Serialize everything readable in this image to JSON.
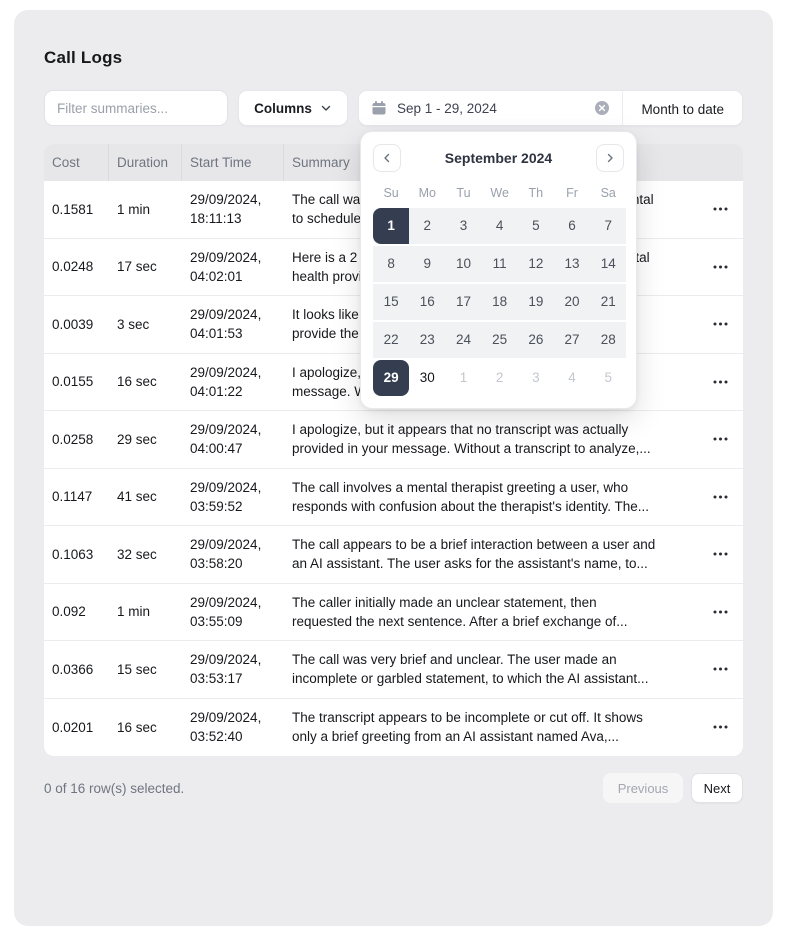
{
  "page_title": "Call Logs",
  "toolbar": {
    "filter_placeholder": "Filter summaries...",
    "columns_label": "Columns",
    "date_range_value": "Sep 1 - 29, 2024",
    "month_to_date_label": "Month to date"
  },
  "calendar": {
    "title": "September 2024",
    "weekdays": [
      "Su",
      "Mo",
      "Tu",
      "We",
      "Th",
      "Fr",
      "Sa"
    ],
    "weeks": [
      [
        {
          "d": "1",
          "state": "selected rstart"
        },
        {
          "d": "2",
          "state": "range"
        },
        {
          "d": "3",
          "state": "range"
        },
        {
          "d": "4",
          "state": "range"
        },
        {
          "d": "5",
          "state": "range"
        },
        {
          "d": "6",
          "state": "range"
        },
        {
          "d": "7",
          "state": "range"
        }
      ],
      [
        {
          "d": "8",
          "state": "range"
        },
        {
          "d": "9",
          "state": "range"
        },
        {
          "d": "10",
          "state": "range"
        },
        {
          "d": "11",
          "state": "range"
        },
        {
          "d": "12",
          "state": "range"
        },
        {
          "d": "13",
          "state": "range"
        },
        {
          "d": "14",
          "state": "range"
        }
      ],
      [
        {
          "d": "15",
          "state": "range"
        },
        {
          "d": "16",
          "state": "range"
        },
        {
          "d": "17",
          "state": "range"
        },
        {
          "d": "18",
          "state": "range"
        },
        {
          "d": "19",
          "state": "range"
        },
        {
          "d": "20",
          "state": "range"
        },
        {
          "d": "21",
          "state": "range"
        }
      ],
      [
        {
          "d": "22",
          "state": "range"
        },
        {
          "d": "23",
          "state": "range"
        },
        {
          "d": "24",
          "state": "range"
        },
        {
          "d": "25",
          "state": "range"
        },
        {
          "d": "26",
          "state": "range"
        },
        {
          "d": "27",
          "state": "range"
        },
        {
          "d": "28",
          "state": "range"
        }
      ],
      [
        {
          "d": "29",
          "state": "selected rend"
        },
        {
          "d": "30",
          "state": "normal"
        },
        {
          "d": "1",
          "state": "outside"
        },
        {
          "d": "2",
          "state": "outside"
        },
        {
          "d": "3",
          "state": "outside"
        },
        {
          "d": "4",
          "state": "outside"
        },
        {
          "d": "5",
          "state": "outside"
        }
      ]
    ]
  },
  "table": {
    "headers": [
      "Cost",
      "Duration",
      "Start Time",
      "Summary"
    ],
    "rows": [
      {
        "cost": "0.1581",
        "duration": "1 min",
        "date": "29/09/2024,",
        "time": "18:11:13",
        "summary_line1": "The call was an appointment confirmation from Bright Dental",
        "summary_line2": "to schedule a dental appointment. The caller..."
      },
      {
        "cost": "0.0248",
        "duration": "17 sec",
        "date": "29/09/2024,",
        "time": "04:02:01",
        "summary_line1": "Here is a 2 sentence summary: The caller reached a mental",
        "summary_line2": "health provider's office and were assisted by Monika at..."
      },
      {
        "cost": "0.0039",
        "duration": "3 sec",
        "date": "29/09/2024,",
        "time": "04:01:53",
        "summary_line1": "It looks like no transcript was actually included. Please",
        "summary_line2": "provide the transcript so I can summarize it..."
      },
      {
        "cost": "0.0155",
        "duration": "16 sec",
        "date": "29/09/2024,",
        "time": "04:01:22",
        "summary_line1": "I apologize, but no transcript was provided in your",
        "summary_line2": "message. Without an actual transcript, I'm not able to..."
      },
      {
        "cost": "0.0258",
        "duration": "29 sec",
        "date": "29/09/2024,",
        "time": "04:00:47",
        "summary_line1": "I apologize, but it appears that no transcript was actually",
        "summary_line2": "provided in your message. Without a transcript to analyze,..."
      },
      {
        "cost": "0.1147",
        "duration": "41 sec",
        "date": "29/09/2024,",
        "time": "03:59:52",
        "summary_line1": "The call involves a mental therapist greeting a user, who",
        "summary_line2": "responds with confusion about the therapist's identity. The..."
      },
      {
        "cost": "0.1063",
        "duration": "32 sec",
        "date": "29/09/2024,",
        "time": "03:58:20",
        "summary_line1": "The call appears to be a brief interaction between a user and",
        "summary_line2": "an AI assistant. The user asks for the assistant's name, to..."
      },
      {
        "cost": "0.092",
        "duration": "1 min",
        "date": "29/09/2024,",
        "time": "03:55:09",
        "summary_line1": "The caller initially made an unclear statement, then",
        "summary_line2": "requested the next sentence. After a brief exchange of..."
      },
      {
        "cost": "0.0366",
        "duration": "15 sec",
        "date": "29/09/2024,",
        "time": "03:53:17",
        "summary_line1": "The call was very brief and unclear. The user made an",
        "summary_line2": "incomplete or garbled statement, to which the AI assistant..."
      },
      {
        "cost": "0.0201",
        "duration": "16 sec",
        "date": "29/09/2024,",
        "time": "03:52:40",
        "summary_line1": "The transcript appears to be incomplete or cut off. It shows",
        "summary_line2": "only a brief greeting from an AI assistant named Ava,..."
      }
    ]
  },
  "footer": {
    "selection_text": "0 of 16 row(s) selected.",
    "previous_label": "Previous",
    "next_label": "Next"
  },
  "colors": {
    "selected_day_bg": "#343e50",
    "range_bg": "#f1f2f4",
    "card_bg": "#ececee"
  }
}
